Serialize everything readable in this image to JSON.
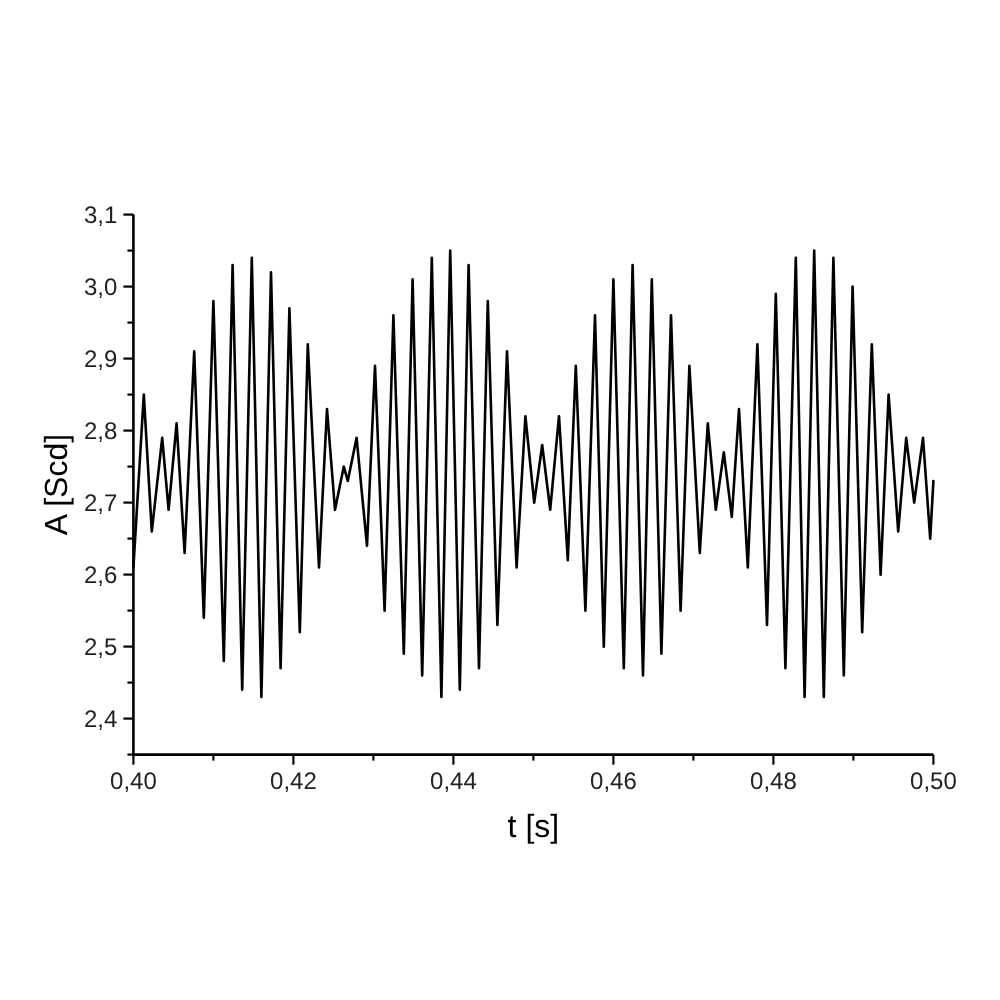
{
  "chart_data": {
    "type": "line",
    "xlabel": "t [s]",
    "ylabel": "A [Scd]",
    "xlim": [
      0.4,
      0.5
    ],
    "ylim": [
      2.35,
      3.1
    ],
    "xticks": [
      {
        "value": 0.4,
        "label": "0,40"
      },
      {
        "value": 0.41,
        "label": null
      },
      {
        "value": 0.42,
        "label": "0,42"
      },
      {
        "value": 0.43,
        "label": null
      },
      {
        "value": 0.44,
        "label": "0,44"
      },
      {
        "value": 0.45,
        "label": null
      },
      {
        "value": 0.46,
        "label": "0,46"
      },
      {
        "value": 0.47,
        "label": null
      },
      {
        "value": 0.48,
        "label": "0,48"
      },
      {
        "value": 0.49,
        "label": null
      },
      {
        "value": 0.5,
        "label": "0,50"
      }
    ],
    "yticks": [
      {
        "value": 2.35,
        "label": null
      },
      {
        "value": 2.4,
        "label": "2,4"
      },
      {
        "value": 2.45,
        "label": null
      },
      {
        "value": 2.5,
        "label": "2,5"
      },
      {
        "value": 2.55,
        "label": null
      },
      {
        "value": 2.6,
        "label": "2,6"
      },
      {
        "value": 2.65,
        "label": null
      },
      {
        "value": 2.7,
        "label": "2,7"
      },
      {
        "value": 2.75,
        "label": null
      },
      {
        "value": 2.8,
        "label": "2,8"
      },
      {
        "value": 2.85,
        "label": null
      },
      {
        "value": 2.9,
        "label": "2,9"
      },
      {
        "value": 2.95,
        "label": null
      },
      {
        "value": 3.0,
        "label": "3,0"
      },
      {
        "value": 3.05,
        "label": null
      },
      {
        "value": 3.1,
        "label": "3,1"
      }
    ],
    "x": [
      0.4,
      0.4013,
      0.4023,
      0.4036,
      0.4044,
      0.4054,
      0.4064,
      0.4076,
      0.4088,
      0.41,
      0.4113,
      0.4124,
      0.4136,
      0.4148,
      0.416,
      0.4172,
      0.4184,
      0.4195,
      0.4208,
      0.4218,
      0.4232,
      0.4242,
      0.4252,
      0.4263,
      0.4268,
      0.4279,
      0.4292,
      0.4302,
      0.4314,
      0.4325,
      0.4338,
      0.4349,
      0.4361,
      0.4373,
      0.4385,
      0.4396,
      0.4408,
      0.4419,
      0.4432,
      0.4443,
      0.4455,
      0.4467,
      0.4479,
      0.449,
      0.4501,
      0.4511,
      0.4521,
      0.4532,
      0.4543,
      0.4553,
      0.4565,
      0.4577,
      0.4588,
      0.46,
      0.4613,
      0.4624,
      0.4637,
      0.4648,
      0.466,
      0.4672,
      0.4684,
      0.4695,
      0.4708,
      0.4718,
      0.4728,
      0.4738,
      0.4748,
      0.4757,
      0.4768,
      0.478,
      0.4792,
      0.4803,
      0.4815,
      0.4828,
      0.4839,
      0.4851,
      0.4863,
      0.4875,
      0.4888,
      0.4899,
      0.4911,
      0.4923,
      0.4934,
      0.4944,
      0.4956,
      0.4966,
      0.4976,
      0.4987,
      0.4996,
      0.5
    ],
    "series": [
      {
        "color": "#000000",
        "values": [
          2.61,
          2.85,
          2.66,
          2.79,
          2.69,
          2.81,
          2.63,
          2.91,
          2.54,
          2.98,
          2.48,
          3.03,
          2.44,
          3.04,
          2.43,
          3.02,
          2.47,
          2.97,
          2.52,
          2.92,
          2.61,
          2.83,
          2.69,
          2.75,
          2.73,
          2.79,
          2.64,
          2.89,
          2.55,
          2.96,
          2.49,
          3.01,
          2.46,
          3.04,
          2.43,
          3.05,
          2.44,
          3.03,
          2.47,
          2.98,
          2.53,
          2.91,
          2.61,
          2.82,
          2.7,
          2.78,
          2.69,
          2.82,
          2.62,
          2.89,
          2.55,
          2.96,
          2.5,
          3.01,
          2.47,
          3.03,
          2.46,
          3.01,
          2.49,
          2.96,
          2.55,
          2.89,
          2.63,
          2.81,
          2.69,
          2.77,
          2.68,
          2.83,
          2.61,
          2.92,
          2.53,
          2.99,
          2.47,
          3.04,
          2.43,
          3.05,
          2.43,
          3.04,
          2.46,
          3.0,
          2.52,
          2.92,
          2.6,
          2.85,
          2.66,
          2.79,
          2.7,
          2.79,
          2.65,
          2.73
        ]
      }
    ]
  }
}
